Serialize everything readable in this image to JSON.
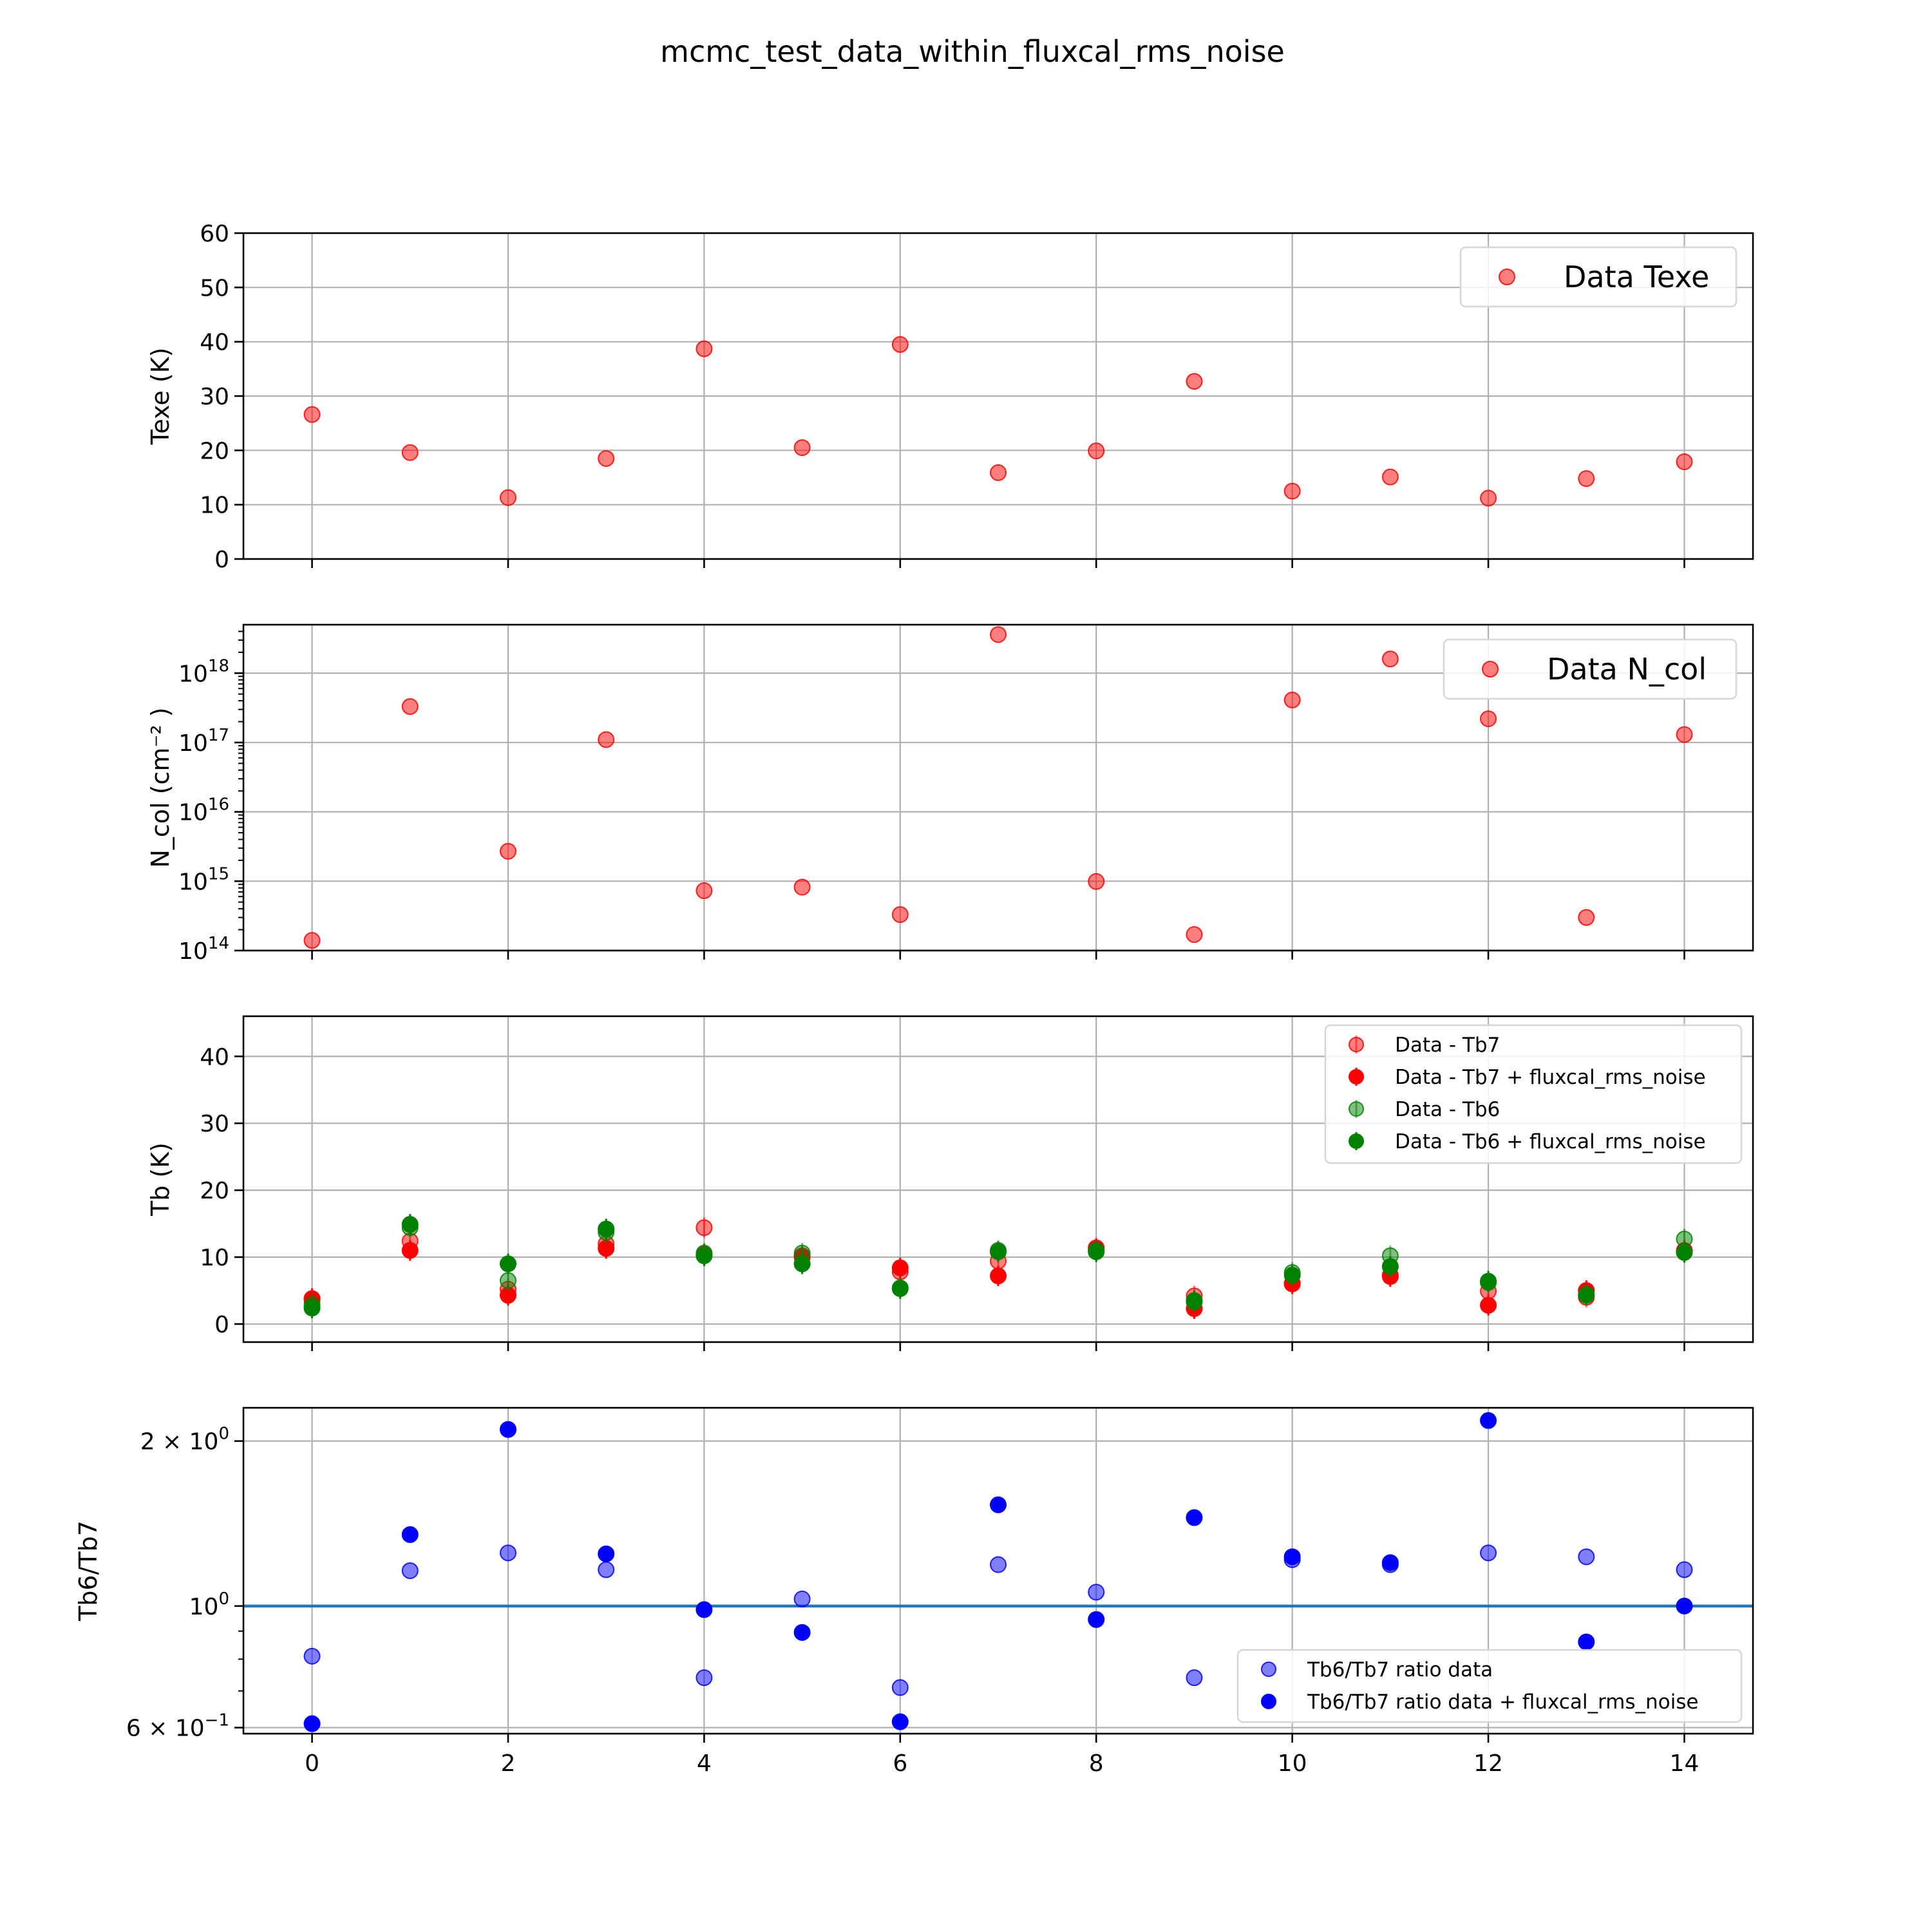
{
  "figure": {
    "title": "mcmc_test_data_within_fluxcal_rms_noise"
  },
  "chart_data": [
    {
      "type": "scatter",
      "ylabel": "Texe (K)",
      "ylim": [
        0,
        60
      ],
      "yticks": [
        0,
        10,
        20,
        30,
        40,
        50,
        60
      ],
      "ytick_labels": [
        "0",
        "10",
        "20",
        "30",
        "40",
        "50",
        "60"
      ],
      "xlim": [
        -0.7,
        14.7
      ],
      "xticks": [
        0,
        2,
        4,
        6,
        8,
        10,
        12,
        14
      ],
      "grid": true,
      "legend": "top-right",
      "series": [
        {
          "name": "Data Texe",
          "color": "#ff0000",
          "alpha": 0.5,
          "x": [
            0,
            1,
            2,
            3,
            4,
            5,
            6,
            7,
            8,
            9,
            10,
            11,
            12,
            13,
            14
          ],
          "y": [
            26.6,
            19.6,
            11.3,
            18.5,
            38.7,
            20.5,
            39.5,
            15.9,
            19.9,
            32.7,
            12.5,
            15.1,
            11.2,
            14.8,
            17.9
          ]
        }
      ]
    },
    {
      "type": "scatter",
      "ylabel": "N_col (cm⁻² )",
      "yscale": "log",
      "ylim": [
        100000000000000.0,
        5e+18
      ],
      "yticks": [
        100000000000000.0,
        1000000000000000.0,
        1e+16,
        1e+17,
        1e+18
      ],
      "ytick_labels": [
        [
          "10",
          "14"
        ],
        [
          "10",
          "15"
        ],
        [
          "10",
          "16"
        ],
        [
          "10",
          "17"
        ],
        [
          "10",
          "18"
        ]
      ],
      "xlim": [
        -0.7,
        14.7
      ],
      "xticks": [
        0,
        2,
        4,
        6,
        8,
        10,
        12,
        14
      ],
      "grid": true,
      "legend": "top-right",
      "series": [
        {
          "name": "Data N_col",
          "color": "#ff0000",
          "alpha": 0.5,
          "x": [
            0,
            1,
            2,
            3,
            4,
            5,
            6,
            7,
            8,
            9,
            10,
            11,
            12,
            13,
            14
          ],
          "y": [
            140000000000000.0,
            3.3e+17,
            2700000000000000.0,
            1.1e+17,
            730000000000000.0,
            820000000000000.0,
            330000000000000.0,
            3.6e+18,
            990000000000000.0,
            170000000000000.0,
            4.1e+17,
            1.6e+18,
            2.2e+17,
            300000000000000.0,
            1.3e+17
          ]
        }
      ]
    },
    {
      "type": "scatter",
      "ylabel": "Tb (K)",
      "ylim": [
        -2.7,
        46
      ],
      "yticks": [
        0,
        10,
        20,
        30,
        40
      ],
      "ytick_labels": [
        "0",
        "10",
        "20",
        "30",
        "40"
      ],
      "xlim": [
        -0.7,
        14.7
      ],
      "xticks": [
        0,
        2,
        4,
        6,
        8,
        10,
        12,
        14
      ],
      "grid": true,
      "legend": "top-right",
      "series": [
        {
          "name": "Data - Tb7",
          "color": "#ff0000",
          "alpha": 0.5,
          "errorbars": true,
          "x": [
            0,
            1,
            2,
            3,
            4,
            5,
            6,
            7,
            8,
            9,
            10,
            11,
            12,
            13,
            14
          ],
          "y": [
            3.6,
            12.4,
            5.2,
            12.0,
            14.4,
            10.2,
            7.8,
            9.4,
            11.4,
            4.2,
            6.1,
            7.3,
            4.9,
            4.0,
            11.0
          ]
        },
        {
          "name": "Data - Tb7 + fluxcal_rms_noise",
          "color": "#ff0000",
          "alpha": 1.0,
          "errorbars": true,
          "x": [
            0,
            1,
            2,
            3,
            4,
            5,
            6,
            7,
            8,
            9,
            10,
            11,
            12,
            13,
            14
          ],
          "y": [
            3.8,
            11.0,
            4.3,
            11.3,
            10.4,
            10.0,
            8.4,
            7.2,
            11.2,
            2.3,
            6.0,
            7.1,
            2.8,
            5.0,
            10.9
          ]
        },
        {
          "name": "Data - Tb6",
          "color": "#008000",
          "alpha": 0.5,
          "errorbars": true,
          "x": [
            0,
            1,
            2,
            3,
            4,
            5,
            6,
            7,
            8,
            9,
            10,
            11,
            12,
            13,
            14
          ],
          "y": [
            2.9,
            14.4,
            6.5,
            13.7,
            10.6,
            10.6,
            5.4,
            11.0,
            11.0,
            3.3,
            7.7,
            10.2,
            6.2,
            4.4,
            12.7
          ]
        },
        {
          "name": "Data - Tb6 + fluxcal_rms_noise",
          "color": "#008000",
          "alpha": 1.0,
          "errorbars": true,
          "x": [
            0,
            1,
            2,
            3,
            4,
            5,
            6,
            7,
            8,
            9,
            10,
            11,
            12,
            13,
            14
          ],
          "y": [
            2.4,
            14.9,
            9.0,
            14.2,
            10.2,
            9.0,
            5.3,
            10.8,
            10.8,
            3.5,
            7.3,
            8.6,
            6.4,
            4.3,
            10.7
          ]
        }
      ]
    },
    {
      "type": "scatter",
      "ylabel": "Tb6/Tb7",
      "yscale": "log",
      "ylim": [
        0.585,
        2.3
      ],
      "yticks": [
        0.6,
        1.0,
        2.0
      ],
      "ytick_labels": [
        [
          "6 × 10",
          "−1"
        ],
        [
          "10",
          "0"
        ],
        [
          "2 × 10",
          "0"
        ]
      ],
      "xlim": [
        -0.7,
        14.7
      ],
      "xticks": [
        0,
        2,
        4,
        6,
        8,
        10,
        12,
        14
      ],
      "xtick_labels": [
        "0",
        "2",
        "4",
        "6",
        "8",
        "10",
        "12",
        "14"
      ],
      "hline": 1.0,
      "hline_color": "#1f77b4",
      "grid": true,
      "legend": "bottom-right",
      "series": [
        {
          "name": "Tb6/Tb7 ratio data",
          "color": "#0000ff",
          "alpha": 0.5,
          "x": [
            0,
            1,
            2,
            3,
            4,
            5,
            6,
            7,
            8,
            9,
            10,
            11,
            12,
            13,
            14
          ],
          "y": [
            0.81,
            1.16,
            1.25,
            1.165,
            0.74,
            1.03,
            0.71,
            1.19,
            1.06,
            0.74,
            1.215,
            1.19,
            1.25,
            1.23,
            1.165
          ]
        },
        {
          "name": "Tb6/Tb7 ratio data + fluxcal_rms_noise",
          "color": "#0000ff",
          "alpha": 1.0,
          "x": [
            0,
            1,
            2,
            3,
            4,
            5,
            6,
            7,
            8,
            9,
            10,
            11,
            12,
            13,
            14
          ],
          "y": [
            0.61,
            1.35,
            2.1,
            1.245,
            0.985,
            0.895,
            0.615,
            1.53,
            0.945,
            1.45,
            1.23,
            1.2,
            2.18,
            0.86,
            1.0
          ]
        }
      ]
    }
  ]
}
